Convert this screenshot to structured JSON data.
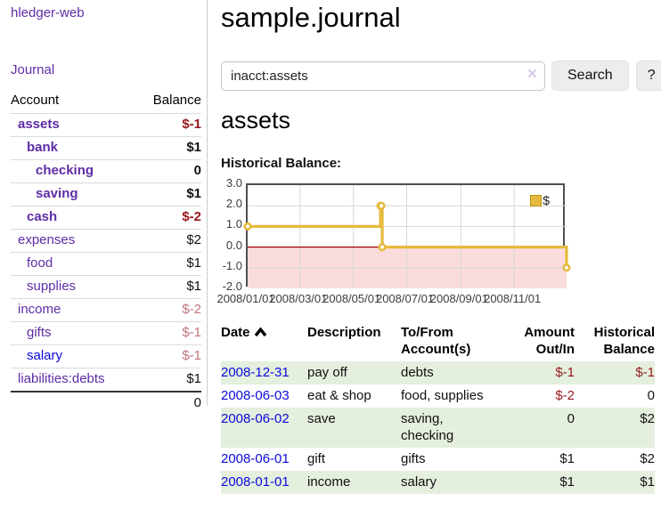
{
  "sidebar": {
    "brand": "hledger-web",
    "nav": {
      "journal": "Journal"
    },
    "table": {
      "account_header": "Account",
      "balance_header": "Balance"
    },
    "accounts": [
      {
        "name": "assets",
        "depth": 1,
        "bold": true,
        "balance": "$-1",
        "balance_style": "negative-strong"
      },
      {
        "name": "bank",
        "depth": 2,
        "bold": true,
        "balance": "$1",
        "balance_style": "normal"
      },
      {
        "name": "checking",
        "depth": 3,
        "bold": true,
        "balance": "0",
        "balance_style": "normal"
      },
      {
        "name": "saving",
        "depth": 3,
        "bold": true,
        "balance": "$1",
        "balance_style": "normal"
      },
      {
        "name": "cash",
        "depth": 2,
        "bold": true,
        "balance": "$-2",
        "balance_style": "negative-strong"
      },
      {
        "name": "expenses",
        "depth": 1,
        "bold": false,
        "balance": "$2",
        "balance_style": "normal"
      },
      {
        "name": "food",
        "depth": 2,
        "bold": false,
        "balance": "$1",
        "balance_style": "normal"
      },
      {
        "name": "supplies",
        "depth": 2,
        "bold": false,
        "balance": "$1",
        "balance_style": "normal"
      },
      {
        "name": "income",
        "depth": 1,
        "bold": false,
        "balance": "$-2",
        "balance_style": "negative-muted"
      },
      {
        "name": "gifts",
        "depth": 2,
        "bold": false,
        "balance": "$-1",
        "balance_style": "negative-muted"
      },
      {
        "name": "salary",
        "depth": 2,
        "bold": false,
        "balance": "$-1",
        "balance_style": "negative-muted",
        "link_color": "blue"
      },
      {
        "name": "liabilities:debts",
        "depth": 1,
        "bold": false,
        "balance": "$1",
        "balance_style": "normal"
      }
    ],
    "total": "0"
  },
  "main": {
    "title": "sample.journal",
    "search": {
      "value": "inacct:assets",
      "clear_icon": "×",
      "search_button": "Search",
      "help_button": "?"
    },
    "account_heading": "assets",
    "chart_heading": "Historical Balance:"
  },
  "chart_data": {
    "type": "line",
    "step": true,
    "title": "Historical Balance",
    "series": [
      {
        "name": "$",
        "color": "#e5ba3e",
        "points": [
          {
            "date": "2008-01-01",
            "value": 1
          },
          {
            "date": "2008-06-01",
            "value": 2
          },
          {
            "date": "2008-06-02",
            "value": 2
          },
          {
            "date": "2008-06-03",
            "value": 0
          },
          {
            "date": "2008-12-31",
            "value": -1
          }
        ]
      }
    ],
    "x_range": [
      "2008-01-01",
      "2008-12-31"
    ],
    "ylim": [
      -2,
      3
    ],
    "y_ticks": [
      3.0,
      2.0,
      1.0,
      0.0,
      -1.0,
      -2.0
    ],
    "y_tick_labels": [
      "3.0",
      "2.0",
      "1.0",
      "0.0",
      "-1.0",
      "-2.0"
    ],
    "x_tick_labels": [
      "2008/01/01",
      "2008/03/01",
      "2008/05/01",
      "2008/07/01",
      "2008/09/01",
      "2008/11/01"
    ],
    "legend": {
      "label": "$",
      "position": "top-right"
    },
    "grid": true,
    "negative_region_color": "#fbdcdc",
    "zero_line_color": "#a40000"
  },
  "register": {
    "headers": {
      "date": "Date",
      "description": "Description",
      "account": "To/From Account(s)",
      "amount": "Amount Out/In",
      "balance": "Historical Balance"
    },
    "rows": [
      {
        "date": "2008-12-31",
        "description": "pay off",
        "account": "debts",
        "amount": "$-1",
        "amount_style": "negative",
        "balance": "$-1",
        "balance_style": "negative"
      },
      {
        "date": "2008-06-03",
        "description": "eat & shop",
        "account": "food, supplies",
        "amount": "$-2",
        "amount_style": "negative",
        "balance": "0",
        "balance_style": "normal"
      },
      {
        "date": "2008-06-02",
        "description": "save",
        "account": "saving, checking",
        "amount": "0",
        "amount_style": "normal",
        "balance": "$2",
        "balance_style": "normal"
      },
      {
        "date": "2008-06-01",
        "description": "gift",
        "account": "gifts",
        "amount": "$1",
        "amount_style": "normal",
        "balance": "$2",
        "balance_style": "normal"
      },
      {
        "date": "2008-01-01",
        "description": "income",
        "account": "salary",
        "amount": "$1",
        "amount_style": "normal",
        "balance": "$1",
        "balance_style": "normal"
      }
    ]
  }
}
